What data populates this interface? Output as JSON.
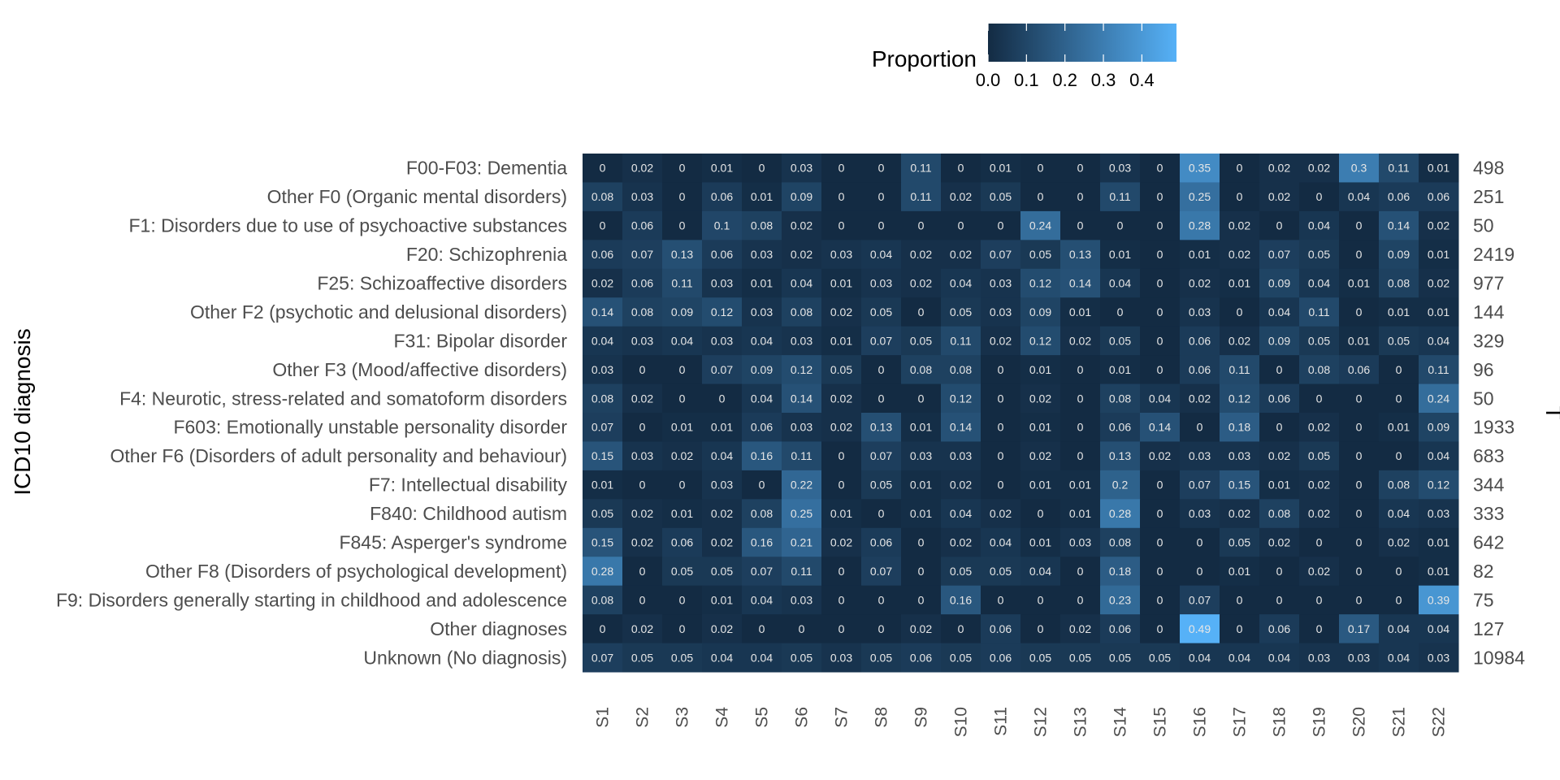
{
  "chart_data": {
    "type": "heatmap",
    "ylabel": "ICD10 diagnosis",
    "right_label": "T",
    "legend": {
      "title": "Proportion",
      "ticks": [
        "0.0",
        "0.1",
        "0.2",
        "0.3",
        "0.4"
      ],
      "tick_values": [
        0.0,
        0.1,
        0.2,
        0.3,
        0.4
      ],
      "range": [
        0,
        0.49
      ],
      "low_color": "#132b43",
      "high_color": "#56b1f7",
      "placement": "top"
    },
    "columns": [
      "S1",
      "S2",
      "S3",
      "S4",
      "S5",
      "S6",
      "S7",
      "S8",
      "S9",
      "S10",
      "S11",
      "S12",
      "S13",
      "S14",
      "S15",
      "S16",
      "S17",
      "S18",
      "S19",
      "S20",
      "S21",
      "S22"
    ],
    "rows": [
      "F00-F03: Dementia",
      "Other F0 (Organic mental disorders)",
      "F1: Disorders due to use of psychoactive substances",
      "F20: Schizophrenia",
      "F25: Schizoaffective disorders",
      "Other F2 (psychotic and delusional disorders)",
      "F31: Bipolar disorder",
      "Other F3 (Mood/affective disorders)",
      "F4: Neurotic, stress-related and somatoform disorders",
      "F603: Emotionally unstable personality disorder",
      "Other F6 (Disorders of adult personality and behaviour)",
      "F7: Intellectual disability",
      "F840: Childhood autism",
      "F845: Asperger's syndrome",
      "Other F8 (Disorders of psychological development)",
      "F9: Disorders generally starting in childhood and adolescence",
      "Other diagnoses",
      "Unknown (No diagnosis)"
    ],
    "totals": [
      "498",
      "251",
      "50",
      "2419",
      "977",
      "144",
      "329",
      "96",
      "50",
      "1933",
      "683",
      "344",
      "333",
      "642",
      "82",
      "75",
      "127",
      "10984"
    ],
    "values": [
      [
        0,
        0.02,
        0,
        0.01,
        0,
        0.03,
        0,
        0,
        0.11,
        0,
        0.01,
        0,
        0,
        0.03,
        0,
        0.35,
        0,
        0.02,
        0.02,
        0.3,
        0.11,
        0.01
      ],
      [
        0.08,
        0.03,
        0,
        0.06,
        0.01,
        0.09,
        0,
        0,
        0.11,
        0.02,
        0.05,
        0,
        0,
        0.11,
        0,
        0.25,
        0,
        0.02,
        0,
        0.04,
        0.06,
        0.06
      ],
      [
        0,
        0.06,
        0,
        0.1,
        0.08,
        0.02,
        0,
        0,
        0,
        0,
        0,
        0.24,
        0,
        0,
        0,
        0.28,
        0.02,
        0,
        0.04,
        0,
        0.14,
        0.02
      ],
      [
        0.06,
        0.07,
        0.13,
        0.06,
        0.03,
        0.02,
        0.03,
        0.04,
        0.02,
        0.02,
        0.07,
        0.05,
        0.13,
        0.01,
        0,
        0.01,
        0.02,
        0.07,
        0.05,
        0,
        0.09,
        0.01
      ],
      [
        0.02,
        0.06,
        0.11,
        0.03,
        0.01,
        0.04,
        0.01,
        0.03,
        0.02,
        0.04,
        0.03,
        0.12,
        0.14,
        0.04,
        0,
        0.02,
        0.01,
        0.09,
        0.04,
        0.01,
        0.08,
        0.02
      ],
      [
        0.14,
        0.08,
        0.09,
        0.12,
        0.03,
        0.08,
        0.02,
        0.05,
        0,
        0.05,
        0.03,
        0.09,
        0.01,
        0,
        0,
        0.03,
        0,
        0.04,
        0.11,
        0,
        0.01,
        0.01
      ],
      [
        0.04,
        0.03,
        0.04,
        0.03,
        0.04,
        0.03,
        0.01,
        0.07,
        0.05,
        0.11,
        0.02,
        0.12,
        0.02,
        0.05,
        0,
        0.06,
        0.02,
        0.09,
        0.05,
        0.01,
        0.05,
        0.04
      ],
      [
        0.03,
        0,
        0,
        0.07,
        0.09,
        0.12,
        0.05,
        0,
        0.08,
        0.08,
        0,
        0.01,
        0,
        0.01,
        0,
        0.06,
        0.11,
        0,
        0.08,
        0.06,
        0,
        0.11
      ],
      [
        0.08,
        0.02,
        0,
        0,
        0.04,
        0.14,
        0.02,
        0,
        0,
        0.12,
        0,
        0.02,
        0,
        0.08,
        0.04,
        0.02,
        0.12,
        0.06,
        0,
        0,
        0,
        0.24
      ],
      [
        0.07,
        0,
        0.01,
        0.01,
        0.06,
        0.03,
        0.02,
        0.13,
        0.01,
        0.14,
        0,
        0.01,
        0,
        0.06,
        0.14,
        0,
        0.18,
        0,
        0.02,
        0,
        0.01,
        0.09
      ],
      [
        0.15,
        0.03,
        0.02,
        0.04,
        0.16,
        0.11,
        0,
        0.07,
        0.03,
        0.03,
        0,
        0.02,
        0,
        0.13,
        0.02,
        0.03,
        0.03,
        0.02,
        0.05,
        0,
        0,
        0.04
      ],
      [
        0.01,
        0,
        0,
        0.03,
        0,
        0.22,
        0,
        0.05,
        0.01,
        0.02,
        0,
        0.01,
        0.01,
        0.2,
        0,
        0.07,
        0.15,
        0.01,
        0.02,
        0,
        0.08,
        0.12
      ],
      [
        0.05,
        0.02,
        0.01,
        0.02,
        0.08,
        0.25,
        0.01,
        0,
        0.01,
        0.04,
        0.02,
        0,
        0.01,
        0.28,
        0,
        0.03,
        0.02,
        0.08,
        0.02,
        0,
        0.04,
        0.03
      ],
      [
        0.15,
        0.02,
        0.06,
        0.02,
        0.16,
        0.21,
        0.02,
        0.06,
        0,
        0.02,
        0.04,
        0.01,
        0.03,
        0.08,
        0,
        0,
        0.05,
        0.02,
        0,
        0,
        0.02,
        0.01
      ],
      [
        0.28,
        0,
        0.05,
        0.05,
        0.07,
        0.11,
        0,
        0.07,
        0,
        0.05,
        0.05,
        0.04,
        0,
        0.18,
        0,
        0,
        0.01,
        0,
        0.02,
        0,
        0,
        0.01
      ],
      [
        0.08,
        0,
        0,
        0.01,
        0.04,
        0.03,
        0,
        0,
        0,
        0.16,
        0,
        0,
        0,
        0.23,
        0,
        0.07,
        0,
        0,
        0,
        0,
        0,
        0.39
      ],
      [
        0,
        0.02,
        0,
        0.02,
        0,
        0,
        0,
        0,
        0.02,
        0,
        0.06,
        0,
        0.02,
        0.06,
        0,
        0.49,
        0,
        0.06,
        0,
        0.17,
        0.04,
        0.04
      ],
      [
        0.07,
        0.05,
        0.05,
        0.04,
        0.04,
        0.05,
        0.03,
        0.05,
        0.06,
        0.05,
        0.06,
        0.05,
        0.05,
        0.05,
        0.05,
        0.04,
        0.04,
        0.04,
        0.03,
        0.03,
        0.04,
        0.03
      ]
    ]
  }
}
